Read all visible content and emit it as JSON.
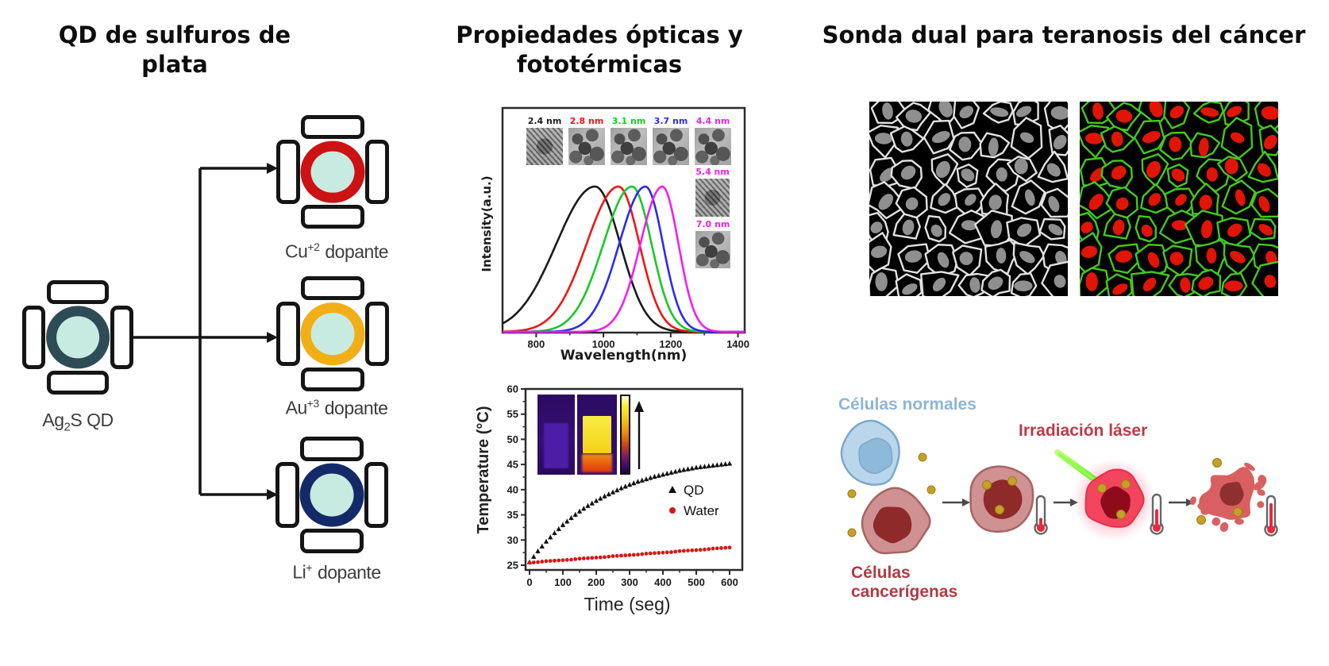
{
  "canvas": {
    "background": "#ffffff"
  },
  "left_panel": {
    "title": "QD de sulfuros de plata",
    "base_qd": {
      "label_pre": "Ag",
      "label_sub": "2",
      "label_post": "S QD",
      "ring_color": "#2d4c55",
      "core_color": "#c8ebe1"
    },
    "dopants": [
      {
        "element": "Cu",
        "charge": "+2",
        "word": "dopante",
        "ring_color": "#cc1212",
        "core_color": "#c8ebe1"
      },
      {
        "element": "Au",
        "charge": "+3",
        "word": "dopante",
        "ring_color": "#f2ae17",
        "core_color": "#c8ebe1"
      },
      {
        "element": "Li",
        "charge": "+",
        "word": "dopante",
        "ring_color": "#142a68",
        "core_color": "#c8ebe1"
      }
    ]
  },
  "middle_panel": {
    "title": "Propiedades ópticas y fototérmicas"
  },
  "right_panel": {
    "title": "Sonda dual para teranosis del cáncer",
    "labels": {
      "normal_cells": "Células normales",
      "cancer_cells": "Células cancerígenas",
      "laser": "Irradiación láser"
    },
    "colors": {
      "normal_label": "#8cb6d6",
      "cancer_label": "#b23a44",
      "laser_label": "#bf3a45",
      "normal_cell_fill": "#b9d6ea",
      "normal_cell_stroke": "#7aa8cc",
      "normal_nucleus": "#8fb9d8",
      "cancer_cell_fill": "#cf9191",
      "cancer_cell_stroke": "#a66464",
      "cancer_nucleus": "#8e2a2a",
      "irradiated_fill": "#f2455d",
      "irradiated_nucleus": "#8e0b1c",
      "dead_fill": "#d96060",
      "dead_nucleus": "#8e3030",
      "qd_dot": "#c5a129",
      "laser_beam": "#55e41e",
      "thermometer_fill": "#e8293f",
      "arrow": "#4a4a4a"
    },
    "microscopy": {
      "grayscale": {
        "bg": "#000000",
        "membrane": "#e2e2e2",
        "nucleus": "#8f8f8f"
      },
      "fluorescence": {
        "bg": "#000000",
        "membrane": "#46c81e",
        "nucleus": "#e01505"
      }
    }
  },
  "chart_data": [
    {
      "type": "line",
      "title": "",
      "xlabel": "Wavelength(nm)",
      "ylabel": "Intensity(a.u.)",
      "xlim": [
        700,
        1420
      ],
      "xticks": [
        800,
        1000,
        1200,
        1400
      ],
      "grid": false,
      "series": [
        {
          "name": "2.4 nm",
          "color": "#1a1a1a",
          "peak_nm": 975,
          "sigma_left": 115,
          "sigma_right": 75,
          "amplitude": 1.0
        },
        {
          "name": "2.8 nm",
          "color": "#ee1612",
          "peak_nm": 1045,
          "sigma_left": 95,
          "sigma_right": 62,
          "amplitude": 1.0
        },
        {
          "name": "3.1 nm",
          "color": "#17c928",
          "peak_nm": 1085,
          "sigma_left": 85,
          "sigma_right": 58,
          "amplitude": 1.0
        },
        {
          "name": "3.7 nm",
          "color": "#2b2bf0",
          "peak_nm": 1125,
          "sigma_left": 78,
          "sigma_right": 52,
          "amplitude": 1.0
        },
        {
          "name": "4.4 nm",
          "color": "#f11ef1",
          "peak_nm": 1175,
          "sigma_left": 65,
          "sigma_right": 48,
          "amplitude": 1.0
        }
      ],
      "tem_insets": [
        {
          "label": "2.4 nm",
          "color": "#1a1a1a"
        },
        {
          "label": "2.8 nm",
          "color": "#ee1612"
        },
        {
          "label": "3.1 nm",
          "color": "#17c928"
        },
        {
          "label": "3.7 nm",
          "color": "#2b2bf0"
        },
        {
          "label": "4.4 nm",
          "color": "#f11ef1"
        },
        {
          "label": "5.4 nm",
          "color": "#f11ef1"
        },
        {
          "label": "7.0 nm",
          "color": "#f11ef1"
        }
      ]
    },
    {
      "type": "scatter",
      "title": "",
      "xlabel": "Time (seg)",
      "ylabel": "Temperature (°C)",
      "xlim": [
        0,
        620
      ],
      "ylim": [
        24,
        60
      ],
      "xticks": [
        0,
        100,
        200,
        300,
        400,
        500,
        600
      ],
      "yticks": [
        25,
        30,
        35,
        40,
        45,
        50,
        55,
        60
      ],
      "legend_position": "middle-right",
      "series": [
        {
          "name": "QD",
          "color": "#111111",
          "marker": "triangle",
          "x": [
            0,
            25,
            50,
            75,
            100,
            125,
            150,
            175,
            200,
            225,
            250,
            275,
            300,
            325,
            350,
            375,
            400,
            425,
            450,
            475,
            500,
            525,
            550,
            575,
            600
          ],
          "y": [
            25.6,
            27.8,
            29.7,
            31.4,
            33.0,
            34.4,
            35.7,
            36.8,
            37.8,
            38.7,
            39.5,
            40.3,
            41.0,
            41.6,
            42.1,
            42.6,
            43.0,
            43.4,
            43.8,
            44.1,
            44.4,
            44.6,
            44.8,
            45.0,
            45.2
          ]
        },
        {
          "name": "Water",
          "color": "#dd1414",
          "marker": "circle",
          "x": [
            0,
            25,
            50,
            75,
            100,
            125,
            150,
            175,
            200,
            225,
            250,
            275,
            300,
            325,
            350,
            375,
            400,
            425,
            450,
            475,
            500,
            525,
            550,
            575,
            600
          ],
          "y": [
            25.5,
            25.6,
            25.8,
            25.9,
            26.0,
            26.1,
            26.3,
            26.4,
            26.5,
            26.6,
            26.8,
            26.9,
            27.0,
            27.1,
            27.3,
            27.4,
            27.5,
            27.6,
            27.8,
            27.9,
            28.0,
            28.1,
            28.3,
            28.4,
            28.5
          ]
        }
      ]
    }
  ]
}
